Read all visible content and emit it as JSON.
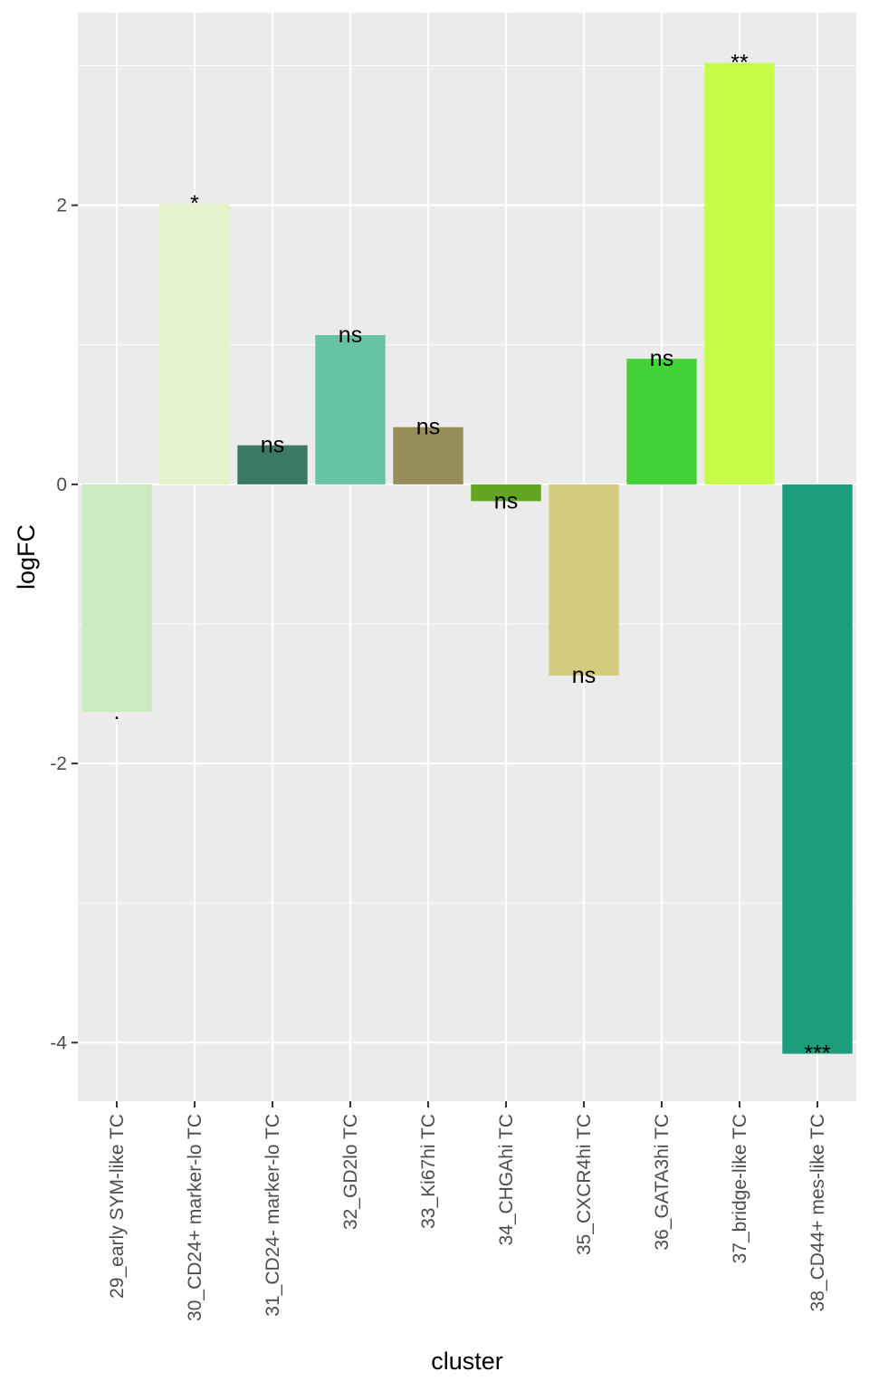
{
  "chart_data": {
    "type": "bar",
    "xlabel": "cluster",
    "ylabel": "logFC",
    "ylim": [
      -4.42,
      3.38
    ],
    "yticks": [
      -4,
      -2,
      0,
      2
    ],
    "grid": true,
    "legend": "none",
    "background": "#ebebeb",
    "categories": [
      "29_early SYM-like TC",
      "30_CD24+ marker-lo TC",
      "31_CD24- marker-lo TC",
      "32_GD2lo TC",
      "33_Ki67hi TC",
      "34_CHGAhi TC",
      "35_CXCR4hi TC",
      "36_GATA3hi TC",
      "37_bridge-like TC",
      "38_CD44+ mes-like TC"
    ],
    "values": [
      -1.63,
      2.01,
      0.28,
      1.07,
      0.41,
      -0.12,
      -1.37,
      0.9,
      3.02,
      -4.08
    ],
    "labels": [
      ".",
      "*",
      "ns",
      "ns",
      "ns",
      "ns",
      "ns",
      "ns",
      "**",
      "***"
    ],
    "colors": [
      "#cbe9c3",
      "#e4f3c9",
      "#3b7963",
      "#66c3a6",
      "#968e5a",
      "#62a51e",
      "#d3cc7f",
      "#44d239",
      "#c6fe45",
      "#1b9e79"
    ]
  }
}
